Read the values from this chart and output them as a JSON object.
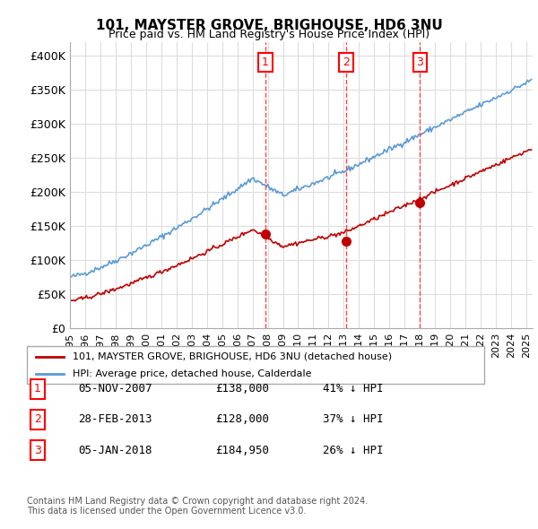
{
  "title": "101, MAYSTER GROVE, BRIGHOUSE, HD6 3NU",
  "subtitle": "Price paid vs. HM Land Registry's House Price Index (HPI)",
  "ylim": [
    0,
    420000
  ],
  "yticks": [
    0,
    50000,
    100000,
    150000,
    200000,
    250000,
    300000,
    350000,
    400000
  ],
  "ytick_labels": [
    "£0",
    "£50K",
    "£100K",
    "£150K",
    "£200K",
    "£250K",
    "£300K",
    "£350K",
    "£400K"
  ],
  "hpi_color": "#5b9bd5",
  "price_color": "#c00000",
  "dashed_color": "#ff4444",
  "background_color": "#ffffff",
  "grid_color": "#dddddd",
  "sale_dates": [
    "2007-11-05",
    "2013-02-28",
    "2018-01-05"
  ],
  "sale_prices": [
    138000,
    128000,
    184950
  ],
  "sale_labels": [
    "1",
    "2",
    "3"
  ],
  "legend_entries": [
    "101, MAYSTER GROVE, BRIGHOUSE, HD6 3NU (detached house)",
    "HPI: Average price, detached house, Calderdale"
  ],
  "table_rows": [
    {
      "num": "1",
      "date": "05-NOV-2007",
      "price": "£138,000",
      "hpi": "41% ↓ HPI"
    },
    {
      "num": "2",
      "date": "28-FEB-2013",
      "price": "£128,000",
      "hpi": "37% ↓ HPI"
    },
    {
      "num": "3",
      "date": "05-JAN-2018",
      "price": "£184,950",
      "hpi": "26% ↓ HPI"
    }
  ],
  "footnote": "Contains HM Land Registry data © Crown copyright and database right 2024.\nThis data is licensed under the Open Government Licence v3.0.",
  "x_start_year": 1995,
  "x_end_year": 2025
}
